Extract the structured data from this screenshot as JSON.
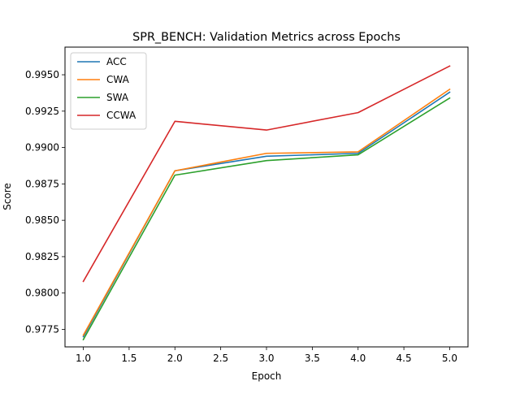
{
  "chart_data": {
    "type": "line",
    "title": "SPR_BENCH: Validation Metrics across Epochs",
    "xlabel": "Epoch",
    "ylabel": "Score",
    "xlim": [
      0.8,
      5.2
    ],
    "ylim": [
      0.9763,
      0.9969
    ],
    "xticks": [
      1.0,
      1.5,
      2.0,
      2.5,
      3.0,
      3.5,
      4.0,
      4.5,
      5.0
    ],
    "xtick_labels": [
      "1.0",
      "1.5",
      "2.0",
      "2.5",
      "3.0",
      "3.5",
      "4.0",
      "4.5",
      "5.0"
    ],
    "yticks": [
      0.9775,
      0.98,
      0.9825,
      0.985,
      0.9875,
      0.99,
      0.9925,
      0.995
    ],
    "ytick_labels": [
      "0.9775",
      "0.9800",
      "0.9825",
      "0.9850",
      "0.9875",
      "0.9900",
      "0.9925",
      "0.9950"
    ],
    "grid": false,
    "legend_position": "top-left",
    "x": [
      1,
      2,
      3,
      4,
      5
    ],
    "series": [
      {
        "name": "ACC",
        "color": "#1f77b4",
        "values": [
          0.977,
          0.9884,
          0.9894,
          0.9896,
          0.9938
        ]
      },
      {
        "name": "CWA",
        "color": "#ff7f0e",
        "values": [
          0.9771,
          0.9884,
          0.9896,
          0.9897,
          0.994
        ]
      },
      {
        "name": "SWA",
        "color": "#2ca02c",
        "values": [
          0.9768,
          0.9881,
          0.9891,
          0.9895,
          0.9934
        ]
      },
      {
        "name": "CCWA",
        "color": "#d62728",
        "values": [
          0.9808,
          0.9918,
          0.9912,
          0.9924,
          0.9956
        ]
      }
    ]
  }
}
